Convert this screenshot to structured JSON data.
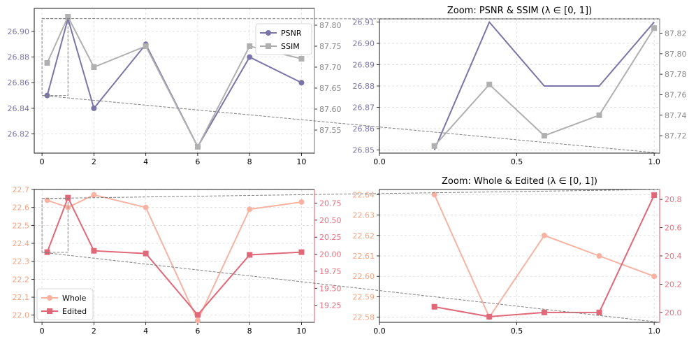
{
  "chart_data": [
    {
      "id": "top-left",
      "type": "line",
      "title": "",
      "xlim": [
        -0.3,
        10.5
      ],
      "x_ticks": [
        0,
        2,
        4,
        6,
        8,
        10
      ],
      "left_axis": {
        "ylim": [
          26.805,
          26.918
        ],
        "ticks": [
          26.82,
          26.84,
          26.86,
          26.88,
          26.9
        ],
        "tick_labels": [
          "26.82",
          "26.84",
          "26.86",
          "26.88",
          "26.90"
        ],
        "color": "#7a75a8"
      },
      "right_axis": {
        "ylim": [
          87.495,
          87.84
        ],
        "ticks": [
          87.55,
          87.6,
          87.65,
          87.7,
          87.75,
          87.8
        ],
        "tick_labels": [
          "87.55",
          "87.60",
          "87.65",
          "87.70",
          "87.75",
          "87.80"
        ],
        "color": "#888888"
      },
      "series": [
        {
          "name": "PSNR",
          "axis": "left",
          "color": "#7a75a8",
          "marker": "circle",
          "x": [
            0.2,
            1,
            2,
            4,
            6,
            8,
            10
          ],
          "values": [
            26.85,
            26.91,
            26.84,
            26.89,
            26.81,
            26.88,
            26.86
          ]
        },
        {
          "name": "SSIM",
          "axis": "right",
          "color": "#b0b0b0",
          "marker": "square",
          "x": [
            0.2,
            1,
            2,
            4,
            6,
            8,
            10
          ],
          "values": [
            87.71,
            87.82,
            87.7,
            87.75,
            87.51,
            87.75,
            87.72
          ]
        }
      ],
      "legend": {
        "entries": [
          "PSNR",
          "SSIM"
        ],
        "location": "upper right"
      },
      "zoom_box": {
        "x_range": [
          0,
          1
        ],
        "y_range": [
          26.85,
          26.91
        ]
      }
    },
    {
      "id": "top-right",
      "type": "line",
      "title": "Zoom: PSNR & SSIM (λ ∈ [0, 1])",
      "xlim": [
        0.0,
        1.02
      ],
      "x_ticks": [
        0.0,
        0.5,
        1.0
      ],
      "x_tick_labels": [
        "0.0",
        "0.5",
        "1.0"
      ],
      "left_axis": {
        "ylim": [
          26.8485,
          26.9115
        ],
        "ticks": [
          26.85,
          26.86,
          26.87,
          26.88,
          26.89,
          26.9,
          26.91
        ],
        "tick_labels": [
          "26.85",
          "26.86",
          "26.87",
          "26.88",
          "26.89",
          "26.90",
          "26.91"
        ],
        "color": "#7a75a8"
      },
      "right_axis": {
        "ylim": [
          87.703,
          87.834
        ],
        "ticks": [
          87.72,
          87.74,
          87.76,
          87.78,
          87.8,
          87.82
        ],
        "tick_labels": [
          "87.72",
          "87.74",
          "87.76",
          "87.78",
          "87.80",
          "87.82"
        ],
        "color": "#888888"
      },
      "series": [
        {
          "name": "PSNR",
          "axis": "left",
          "color": "#7a75a8",
          "marker": "none",
          "x": [
            0.2,
            0.4,
            0.6,
            0.8,
            1.0
          ],
          "values": [
            26.85,
            26.91,
            26.88,
            26.88,
            26.91
          ]
        },
        {
          "name": "SSIM",
          "axis": "right",
          "color": "#b0b0b0",
          "marker": "square",
          "x": [
            0.2,
            0.4,
            0.6,
            0.8,
            1.0
          ],
          "values": [
            87.71,
            87.77,
            87.72,
            87.74,
            87.825
          ]
        }
      ]
    },
    {
      "id": "bottom-left",
      "type": "line",
      "title": "",
      "xlim": [
        -0.3,
        10.5
      ],
      "x_ticks": [
        0,
        2,
        4,
        6,
        8,
        10
      ],
      "left_axis": {
        "ylim": [
          21.96,
          22.7
        ],
        "ticks": [
          22.0,
          22.1,
          22.2,
          22.3,
          22.4,
          22.5,
          22.6,
          22.7
        ],
        "tick_labels": [
          "22.0",
          "22.1",
          "22.2",
          "22.3",
          "22.4",
          "22.5",
          "22.6",
          "22.7"
        ],
        "color": "#f4a582"
      },
      "right_axis": {
        "ylim": [
          19.0,
          20.95
        ],
        "ticks": [
          19.25,
          19.5,
          19.75,
          20.0,
          20.25,
          20.5,
          20.75
        ],
        "tick_labels": [
          "19.25",
          "19.50",
          "19.75",
          "20.00",
          "20.25",
          "20.50",
          "20.75"
        ],
        "color": "#e8707e"
      },
      "series": [
        {
          "name": "Whole",
          "axis": "left",
          "color": "#f7b2a2",
          "marker": "circle",
          "x": [
            0.2,
            1,
            2,
            4,
            6,
            8,
            10
          ],
          "values": [
            22.64,
            22.6,
            22.67,
            22.6,
            21.97,
            22.59,
            22.63
          ]
        },
        {
          "name": "Edited",
          "axis": "right",
          "color": "#e06878",
          "marker": "square",
          "x": [
            0.2,
            1,
            2,
            4,
            6,
            8,
            10
          ],
          "values": [
            20.03,
            20.83,
            20.05,
            20.01,
            19.11,
            19.99,
            20.03
          ]
        }
      ],
      "legend": {
        "entries": [
          "Whole",
          "Edited"
        ],
        "location": "lower left"
      },
      "zoom_box": {
        "x_range": [
          0,
          1
        ],
        "y_range": [
          22.35,
          22.65
        ]
      }
    },
    {
      "id": "bottom-right",
      "type": "line",
      "title": "Zoom: Whole & Edited (λ ∈ [0, 1])",
      "xlim": [
        0.0,
        1.02
      ],
      "x_ticks": [
        0.0,
        0.5,
        1.0
      ],
      "x_tick_labels": [
        "0.0",
        "0.5",
        "1.0"
      ],
      "left_axis": {
        "ylim": [
          22.5775,
          22.6425
        ],
        "ticks": [
          22.58,
          22.59,
          22.6,
          22.61,
          22.62,
          22.63,
          22.64
        ],
        "tick_labels": [
          "22.58",
          "22.59",
          "22.60",
          "22.61",
          "22.62",
          "22.63",
          "22.64"
        ],
        "color": "#f4a582"
      },
      "right_axis": {
        "ylim": [
          19.93,
          20.87
        ],
        "ticks": [
          20.0,
          20.2,
          20.4,
          20.6,
          20.8
        ],
        "tick_labels": [
          "20.0",
          "20.2",
          "20.4",
          "20.6",
          "20.8"
        ],
        "color": "#e8707e"
      },
      "series": [
        {
          "name": "Whole",
          "axis": "left",
          "color": "#f7b2a2",
          "marker": "circle",
          "x": [
            0.2,
            0.4,
            0.6,
            0.8,
            1.0
          ],
          "values": [
            22.64,
            22.58,
            22.62,
            22.61,
            22.6
          ]
        },
        {
          "name": "Edited",
          "axis": "right",
          "color": "#e06878",
          "marker": "square",
          "x": [
            0.2,
            0.4,
            0.6,
            0.8,
            1.0
          ],
          "values": [
            20.04,
            19.97,
            20.0,
            20.0,
            20.83
          ]
        }
      ]
    }
  ]
}
